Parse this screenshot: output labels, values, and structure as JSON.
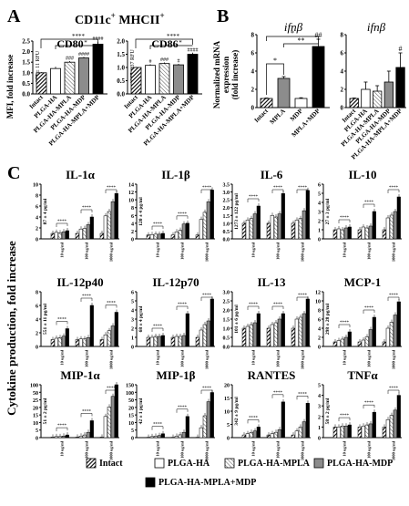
{
  "panels": {
    "A": {
      "letter": "A",
      "header": "CD11c",
      "header_sup1": "+",
      "header_mid": " MHCII",
      "header_sup2": "+",
      "ylabel": "MFI, fold increase",
      "charts": [
        {
          "title": "CD80",
          "baseline": "375 ± 11 RFU",
          "ticks": [
            "0.0",
            "0.5",
            "1.0",
            "1.5",
            "2.0",
            "2.5"
          ],
          "ylim": [
            0,
            2.5
          ],
          "values": [
            1.0,
            1.2,
            1.5,
            1.7,
            2.35
          ],
          "errors": [
            0.03,
            0.08,
            0.05,
            0.05,
            0.12
          ],
          "marks": [
            "",
            "",
            "###",
            "####",
            "####"
          ],
          "sig": [
            "****",
            "*"
          ]
        },
        {
          "title": "CD86",
          "baseline": "1987 ± 37 RFU",
          "ticks": [
            "0.0",
            "0.5",
            "1.0",
            "1.5",
            "2.0"
          ],
          "ylim": [
            0,
            2.0
          ],
          "values": [
            1.0,
            1.08,
            1.15,
            1.1,
            1.5
          ],
          "errors": [
            0.02,
            0.04,
            0.04,
            0.04,
            0.06
          ],
          "marks": [
            "",
            "#",
            "###",
            "#",
            "####"
          ],
          "sig": [
            "****",
            "*"
          ]
        }
      ]
    },
    "B": {
      "letter": "B",
      "ylabel": "Normalized mRNA expression (fold increase)",
      "charts": [
        {
          "title": "ifnβ",
          "ticks": [
            "0",
            "2",
            "4",
            "6",
            "8"
          ],
          "ylim": [
            0,
            8
          ],
          "categories": [
            "Intact",
            "MPLA",
            "MDP",
            "MPLA+MDP"
          ],
          "values": [
            1.0,
            3.2,
            1.0,
            6.7
          ],
          "errors": [
            0.05,
            0.2,
            0.08,
            0.8
          ],
          "marks": [
            "",
            "",
            "",
            "##"
          ],
          "sig": [
            "*",
            "**",
            "*"
          ]
        },
        {
          "title": "ifnβ",
          "ticks": [
            "0",
            "2",
            "4",
            "6",
            "8"
          ],
          "ylim": [
            0,
            8
          ],
          "categories": [
            "Intact",
            "PLGA-HA",
            "PLGA-HA-MPLA",
            "PLGA-HA-MDP",
            "PLGA-HA-MPLA+MDP"
          ],
          "values": [
            1.0,
            2.0,
            1.8,
            2.8,
            4.4
          ],
          "errors": [
            0.05,
            0.8,
            0.6,
            1.2,
            1.6
          ],
          "marks": [
            "",
            "",
            "",
            "",
            "#"
          ]
        }
      ]
    },
    "C": {
      "letter": "C",
      "ylabel": "Cytokine production, fold increase",
      "groups": [
        "10 ug/ml",
        "100 ug/ml",
        "1000 ug/ml"
      ],
      "charts": [
        {
          "title": "IL-1α",
          "baseline": "87 ± 4 pg/ml",
          "ticks": [
            "0",
            "2",
            "4",
            "6",
            "8",
            "10"
          ],
          "ylim": [
            0,
            10
          ],
          "values": [
            [
              1,
              1.2,
              1.1,
              1.3,
              1.5
            ],
            [
              1,
              1.8,
              1.9,
              2.6,
              4.0
            ],
            [
              1,
              4.2,
              5.0,
              6.8,
              8.3
            ]
          ]
        },
        {
          "title": "IL-1β",
          "baseline": "120 ± 4 pg/ml",
          "ticks": [
            "0",
            "2",
            "4",
            "6",
            "8",
            "10",
            "12",
            "14"
          ],
          "ylim": [
            0,
            14
          ],
          "values": [
            [
              1,
              1.1,
              1.2,
              1.2,
              1.4
            ],
            [
              1,
              1.8,
              2.2,
              3.8,
              4.0
            ],
            [
              1,
              5.0,
              6.8,
              9.5,
              12.5
            ]
          ]
        },
        {
          "title": "IL-6",
          "baseline": "1273 ± 122 pg/ml",
          "ticks": [
            "0.0",
            "0.5",
            "1.0",
            "1.5",
            "2.0",
            "2.5",
            "3.0",
            "3.5"
          ],
          "ylim": [
            0,
            3.5
          ],
          "values": [
            [
              1,
              1.2,
              1.3,
              1.6,
              2.1
            ],
            [
              1,
              1.5,
              1.4,
              1.6,
              2.9
            ],
            [
              1,
              1.2,
              1.3,
              1.8,
              3.1
            ]
          ]
        },
        {
          "title": "IL-10",
          "baseline": "27 ± 3 pg/ml",
          "ticks": [
            "0",
            "1",
            "2",
            "3",
            "4",
            "5",
            "6"
          ],
          "ylim": [
            0,
            6
          ],
          "values": [
            [
              1,
              1.1,
              1.0,
              1.2,
              1.3
            ],
            [
              1,
              1.3,
              1.2,
              1.4,
              3.0
            ],
            [
              1,
              2.3,
              2.6,
              3.0,
              4.6
            ]
          ]
        },
        {
          "title": "IL-12p40",
          "baseline": "551 ± 11 pg/ml",
          "ticks": [
            "0",
            "2",
            "4",
            "6",
            "8"
          ],
          "ylim": [
            0,
            8
          ],
          "values": [
            [
              1,
              1.2,
              1.3,
              1.5,
              2.6
            ],
            [
              1,
              1.1,
              1.1,
              1.3,
              6.0
            ],
            [
              1,
              1.7,
              2.3,
              3.0,
              5.0
            ]
          ]
        },
        {
          "title": "IL-12p70",
          "baseline": "68 ± 4 pg/ml",
          "ticks": [
            "0",
            "1",
            "2",
            "3",
            "4",
            "5",
            "6"
          ],
          "ylim": [
            0,
            6
          ],
          "values": [
            [
              1,
              1.0,
              1.1,
              1.1,
              1.2
            ],
            [
              1,
              1.1,
              1.1,
              1.2,
              3.6
            ],
            [
              1,
              1.8,
              2.4,
              2.8,
              5.2
            ]
          ]
        },
        {
          "title": "IL-13",
          "baseline": "101 ± 6 pg/ml",
          "ticks": [
            "0.0",
            "0.5",
            "1.0",
            "1.5",
            "2.0",
            "2.5",
            "3.0"
          ],
          "ylim": [
            0,
            3.0
          ],
          "values": [
            [
              1,
              1.1,
              1.2,
              1.3,
              1.8
            ],
            [
              1,
              1.2,
              1.3,
              1.5,
              1.8
            ],
            [
              1,
              1.5,
              1.6,
              1.8,
              2.6
            ]
          ]
        },
        {
          "title": "MCP-1",
          "baseline": "298 ± 28 pg/ml",
          "ticks": [
            "0",
            "2",
            "4",
            "6",
            "8",
            "10",
            "12"
          ],
          "ylim": [
            0,
            12
          ],
          "values": [
            [
              1,
              1.3,
              1.6,
              2.0,
              3.2
            ],
            [
              1,
              1.4,
              2.1,
              3.7,
              6.4
            ],
            [
              1,
              4.0,
              5.3,
              6.9,
              9.8
            ]
          ]
        },
        {
          "title": "MIP-1α",
          "baseline": "51 ± 2 pg/ml",
          "ticks": [
            "0",
            "5",
            "10",
            "15",
            "20",
            "25",
            "50",
            "100"
          ],
          "ylim": [
            0,
            100
          ],
          "values": [
            [
              1,
              2,
              2,
              3,
              5
            ],
            [
              1,
              3,
              5,
              10,
              32
            ],
            [
              1,
              40,
              58,
              78,
              115
            ]
          ]
        },
        {
          "title": "MIP-1β",
          "baseline": "42 ± 1 pg/ml",
          "ticks": [
            "0",
            "5",
            "10",
            "15",
            "20",
            "50",
            "100",
            "150"
          ],
          "ylim": [
            0,
            150
          ],
          "values": [
            [
              1,
              3,
              4,
              6,
              11
            ],
            [
              1,
              4,
              8,
              15,
              60
            ],
            [
              1,
              28,
              62,
              102,
              128
            ]
          ]
        },
        {
          "title": "RANTES",
          "baseline": "342 ± 9 pg/ml",
          "ticks": [
            "0",
            "5",
            "10",
            "15",
            "20"
          ],
          "ylim": [
            0,
            20
          ],
          "values": [
            [
              1,
              1.5,
              2,
              2.5,
              4
            ],
            [
              1,
              1.5,
              2,
              3,
              13.5
            ],
            [
              1,
              2.5,
              4,
              6,
              13
            ]
          ]
        },
        {
          "title": "TNFα",
          "baseline": "58 ± 2 pg/ml",
          "ticks": [
            "0",
            "1",
            "2",
            "3",
            "4",
            "5"
          ],
          "ylim": [
            0,
            5
          ],
          "values": [
            [
              1,
              1.0,
              1.1,
              1.1,
              1.2
            ],
            [
              1,
              1.1,
              1.2,
              1.3,
              2.4
            ],
            [
              1,
              1.7,
              2.1,
              2.6,
              4.0
            ]
          ]
        }
      ]
    }
  },
  "legend": [
    {
      "label": "Intact",
      "pattern": "dark-hatch"
    },
    {
      "label": "PLGA-HA",
      "pattern": "white"
    },
    {
      "label": "PLGA-HA-MPLA",
      "pattern": "light-hatch"
    },
    {
      "label": "PLGA-HA-MDP",
      "pattern": "grey"
    },
    {
      "label": "PLGA-HA-MPLA+MDP",
      "pattern": "black"
    }
  ],
  "colors": {
    "grey": "#8c8c8c",
    "black": "#000000",
    "white": "#ffffff"
  }
}
